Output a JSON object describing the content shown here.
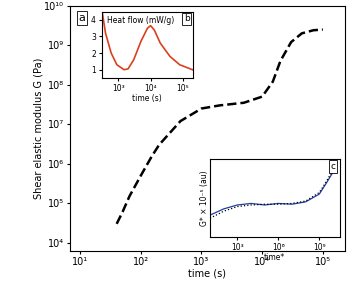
{
  "chart_data": [
    {
      "type": "line",
      "panel_label": "a",
      "y_label": "Shear elastic modulus G (Pa)",
      "x_label": "time (s)",
      "log": true,
      "xlim": [
        6.8,
        230000
      ],
      "xticks": [
        {
          "value": 10,
          "label": "10¹"
        },
        {
          "value": 100,
          "label": "10²"
        },
        {
          "value": 1000,
          "label": "10³"
        },
        {
          "value": 10000,
          "label": "10⁴"
        },
        {
          "value": 100000,
          "label": "10⁵"
        }
      ],
      "ylim": [
        6000,
        10000000000
      ],
      "yticks": [
        {
          "value": 10000,
          "label": "10⁴"
        },
        {
          "value": 100000,
          "label": "10⁵"
        },
        {
          "value": 1000000,
          "label": "10⁶"
        },
        {
          "value": 10000000,
          "label": "10⁷"
        },
        {
          "value": 100000000,
          "label": "10⁸"
        },
        {
          "value": 1000000000,
          "label": "10⁹"
        },
        {
          "value": 10000000000,
          "label": "10¹⁰"
        }
      ],
      "x": [
        40,
        50,
        65,
        100,
        150,
        200,
        300,
        450,
        700,
        1000,
        2000,
        5000,
        10000,
        15000,
        20000,
        30000,
        45000,
        70000,
        100000
      ],
      "series": [
        {
          "color": "#000000",
          "line_style": "dashed",
          "values": [
            30000,
            60000,
            150000,
            500000,
            1500000,
            3000000,
            6000000,
            12000000,
            18000000,
            25000000,
            30000000,
            35000000,
            50000000,
            120000000,
            400000000,
            1200000000,
            2000000000,
            2400000000,
            2500000000
          ]
        }
      ]
    },
    {
      "type": "line",
      "panel_label": "b",
      "annotation": "Heat flow (mW/g)",
      "x_label": "time (s)",
      "log": "x",
      "xlim": [
        300,
        200000
      ],
      "xticks": [
        {
          "value": 1000,
          "label": "10³"
        },
        {
          "value": 10000,
          "label": "10⁴"
        },
        {
          "value": 100000,
          "label": "10⁵"
        }
      ],
      "ylim": [
        0.5,
        4.5
      ],
      "yticks": [
        1,
        2,
        3,
        4
      ],
      "x": [
        320,
        400,
        600,
        900,
        1500,
        2000,
        3000,
        5000,
        8000,
        10000,
        13000,
        20000,
        40000,
        80000,
        200000
      ],
      "series": [
        {
          "color": "#d9401e",
          "line_style": "solid",
          "values": [
            4.4,
            3.2,
            2.0,
            1.3,
            1.0,
            1.05,
            1.6,
            2.7,
            3.5,
            3.65,
            3.4,
            2.6,
            1.8,
            1.3,
            1.0
          ]
        }
      ]
    },
    {
      "type": "line",
      "panel_label": "c",
      "y_label": "G* × 10⁻⁵ (au)",
      "x_label": "time*",
      "log": "x",
      "tick_labels": "x",
      "xlim": [
        10,
        30000000000
      ],
      "xticks": [
        {
          "value": 1000,
          "label": "10³"
        },
        {
          "value": 1000000,
          "label": "10⁶"
        },
        {
          "value": 1000000000,
          "label": "10⁹"
        }
      ],
      "ylim": [
        0,
        10
      ],
      "x": [
        10,
        100,
        1000,
        10000,
        100000,
        1000000,
        10000000,
        100000000,
        1000000000,
        3000000000,
        10000000000
      ],
      "series": [
        {
          "color": "#1f3f9f",
          "line_style": "solid",
          "values": [
            2.8,
            3.6,
            4.1,
            4.3,
            4.1,
            4.3,
            4.2,
            4.5,
            5.5,
            6.8,
            8.3
          ]
        },
        {
          "color": "#000000",
          "line_style": "dotted",
          "values": [
            2.4,
            3.3,
            3.9,
            4.1,
            4.2,
            4.2,
            4.3,
            4.6,
            5.7,
            7.0,
            8.6
          ]
        }
      ]
    }
  ]
}
